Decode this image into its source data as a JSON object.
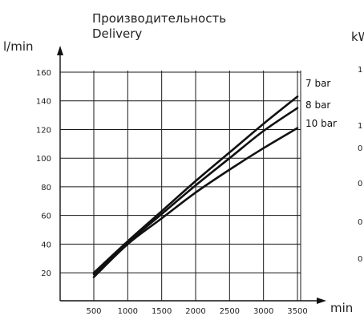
{
  "chart_data": {
    "type": "line",
    "title": "Производительность",
    "subtitle": "Delivery",
    "ylabel": "l/min",
    "xlabel": "min",
    "right_axis_label": "kW",
    "x_ticks": [
      "500",
      "1000",
      "1500",
      "2000",
      "2500",
      "3000",
      "3500"
    ],
    "y_ticks": [
      "20",
      "40",
      "60",
      "80",
      "100",
      "120",
      "140",
      "160"
    ],
    "right_axis_partial_ticks": [
      "1",
      "1",
      "0",
      "0",
      "0",
      "0"
    ],
    "xlim": [
      500,
      3500
    ],
    "ylim": [
      10,
      160
    ],
    "grid": true,
    "series": [
      {
        "name": "7 bar",
        "x": [
          500,
          1000,
          1500,
          2000,
          2500,
          3000,
          3500
        ],
        "y": [
          20,
          42,
          63,
          84,
          104,
          124,
          143
        ]
      },
      {
        "name": "8 bar",
        "x": [
          500,
          1000,
          1500,
          2000,
          2500,
          3000,
          3500
        ],
        "y": [
          19,
          41,
          61,
          81,
          100,
          119,
          135
        ]
      },
      {
        "name": "10 bar",
        "x": [
          500,
          1000,
          1500,
          2000,
          2500,
          3000,
          3500
        ],
        "y": [
          17,
          40,
          58,
          76,
          92,
          107,
          121
        ]
      }
    ]
  }
}
